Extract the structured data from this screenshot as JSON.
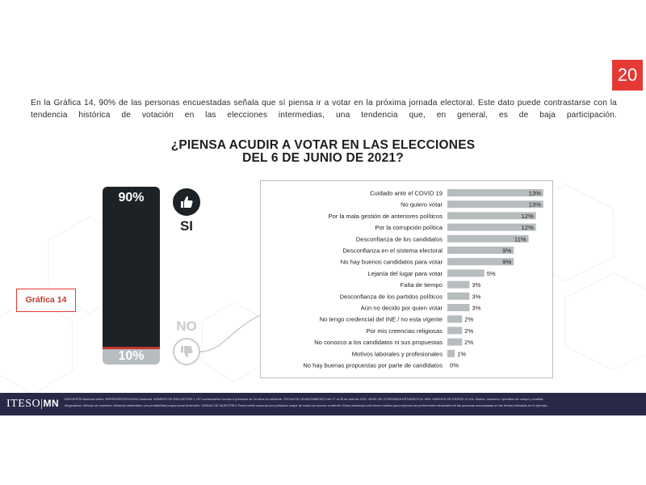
{
  "page": {
    "number": "20"
  },
  "intro": "En la Gráfica 14, 90% de las personas encuestadas señala que sí piensa ir a votar en la próxima jornada electoral. Este dato puede contrastarse con la tendencia histórica de votación en las elecciones intermedias, una tendencia que, en general, es de baja participación.",
  "title": {
    "line1": "¿PIENSA ACUDIR A VOTAR EN LAS ELECCIONES",
    "line2": "DEL 6 DE JUNIO DE 2021?"
  },
  "grafica_label": "Gráfica 14",
  "answers": {
    "yes": {
      "pct_label": "90%",
      "label": "SI"
    },
    "no": {
      "pct_label": "10%",
      "label": "NO"
    }
  },
  "chart_data": [
    {
      "type": "bar",
      "categories": [
        "SI",
        "NO"
      ],
      "values": [
        90,
        10
      ],
      "ylim": [
        0,
        100
      ],
      "colors": [
        "#1c2226",
        "#b7bcbe"
      ]
    },
    {
      "type": "bar",
      "orientation": "horizontal",
      "categories": [
        "Cuidado ante el COVID 19",
        "No quiero votar",
        "Por la mala gestión de anteriores políticos",
        "Por la corrupción política",
        "Desconfianza de los candidatos",
        "Desconfianza en el sistema electoral",
        "No hay buenos candidatos para votar",
        "Lejanía del lugar para votar",
        "Falta de tiempo",
        "Desconfianza de los partidos políticos",
        "Aún no decido por quien votar",
        "No tengo credencial del INE / no esta vigente",
        "Por mis creencias religiosas",
        "No conozco a los candidatos ni sus propuestas",
        "Motivos laborales y profesionales",
        "No hay buenas propuestas por parte de candidatos"
      ],
      "values": [
        13,
        13,
        12,
        12,
        11,
        9,
        9,
        5,
        3,
        3,
        3,
        2,
        2,
        2,
        1,
        0
      ],
      "value_labels": [
        "13%",
        "13%",
        "12%",
        "12%",
        "11%",
        "9%",
        "9%",
        "5%",
        "3%",
        "3%",
        "3%",
        "2%",
        "2%",
        "2%",
        "1%",
        "0%"
      ],
      "xlim": [
        0,
        14
      ],
      "colors": [
        "#b7bcbe"
      ]
    }
  ],
  "footer": {
    "logo_text": "ITESO",
    "logo_suffix": "MN",
    "line1": "ENCUESTA Nacional online. REPRESENTATIVIDAD Nacional. NÚMERO DE ENCUESTAS 1,757 cuestionarios hechos a personas de 18 años en adelante. FECHA DE LEVANTAMIENTO del 17 al 28 de abril de 2021. NIVEL DE CONFIANZA ESTADÍSTICA: 95%. MARGEN DE ERROR ±2.4%. Diseño, muestreo, operativo de campo y análisis:",
    "line2": "Mugendicus. Método de muestreo: Aleatorio sistemático con probabilidad proporcional al tamaño. UNIDAD DE MUESTREO Panel online nacional con población mayor de edad con acceso a internet. Estos resultados solo tienen validez para expresar las preferencias electorales de las personas encuestadas en las fechas indicadas en el ejercicio."
  },
  "colors": {
    "accent": "#e53935",
    "dark": "#1c2226",
    "bar_gray": "#b7bcbe",
    "footer_bg": "#2a2847"
  }
}
